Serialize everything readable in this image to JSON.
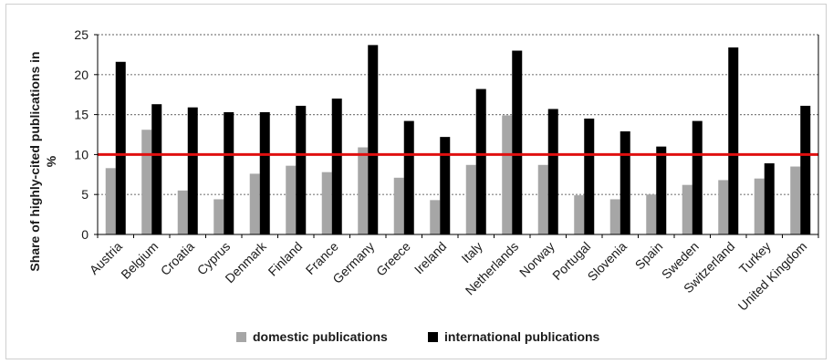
{
  "chart_data": {
    "type": "bar",
    "title": "",
    "xlabel": "",
    "ylabel_lines": [
      "Share of highly-cited publications in",
      "%"
    ],
    "ylim": [
      0,
      25
    ],
    "yticks": [
      0,
      5,
      10,
      15,
      20,
      25
    ],
    "grid": "horizontal dotted",
    "reference_line": {
      "value": 10,
      "color": "#e01010"
    },
    "categories": [
      "Austria",
      "Belgium",
      "Croatia",
      "Cyprus",
      "Denmark",
      "Finland",
      "France",
      "Germany",
      "Greece",
      "Ireland",
      "Italy",
      "Netherlands",
      "Norway",
      "Portugal",
      "Slovenia",
      "Spain",
      "Sweden",
      "Switzerland",
      "Turkey",
      "United Kingdom"
    ],
    "series": [
      {
        "name": "domestic publications",
        "color": "#a6a6a6",
        "values": [
          8.3,
          13.1,
          5.5,
          4.4,
          7.6,
          8.6,
          7.8,
          10.9,
          7.1,
          4.3,
          8.7,
          14.9,
          8.7,
          4.9,
          4.4,
          5.0,
          6.2,
          6.8,
          7.0,
          8.5
        ]
      },
      {
        "name": "international publications",
        "color": "#000000",
        "values": [
          21.6,
          16.3,
          15.9,
          15.3,
          15.3,
          16.1,
          17.0,
          23.7,
          14.2,
          12.2,
          18.2,
          23.0,
          15.7,
          14.5,
          12.9,
          11.0,
          14.2,
          23.4,
          8.9,
          16.1
        ]
      }
    ],
    "legend_position": "bottom"
  }
}
